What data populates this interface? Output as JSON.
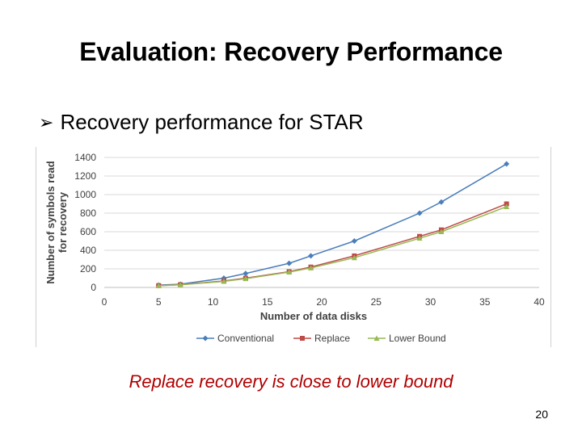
{
  "slide": {
    "title": "Evaluation: Recovery Performance",
    "bullet": "Recovery performance for STAR",
    "caption": "Replace recovery is close to lower bound",
    "page_number": "20"
  },
  "chart_data": {
    "type": "line",
    "xlabel": "Number of data disks",
    "ylabel": [
      "Number of symbols read",
      "for recovery"
    ],
    "xlim": [
      0,
      40
    ],
    "ylim": [
      0,
      1400
    ],
    "xticks": [
      0,
      5,
      10,
      15,
      20,
      25,
      30,
      35,
      40
    ],
    "yticks": [
      0,
      200,
      400,
      600,
      800,
      1000,
      1200,
      1400
    ],
    "grid": true,
    "legend_position": "bottom",
    "series": [
      {
        "name": "Conventional",
        "color": "#4a7ebb",
        "marker": "diamond",
        "x": [
          5,
          7,
          11,
          13,
          17,
          19,
          23,
          29,
          31,
          37
        ],
        "y": [
          25,
          35,
          100,
          150,
          260,
          340,
          500,
          800,
          920,
          1330
        ]
      },
      {
        "name": "Replace",
        "color": "#be4b48",
        "marker": "square",
        "x": [
          5,
          7,
          11,
          13,
          17,
          19,
          23,
          29,
          31,
          37
        ],
        "y": [
          20,
          30,
          70,
          100,
          170,
          220,
          340,
          550,
          620,
          900
        ]
      },
      {
        "name": "Lower Bound",
        "color": "#98b954",
        "marker": "triangle",
        "x": [
          5,
          7,
          11,
          13,
          17,
          19,
          23,
          29,
          31,
          37
        ],
        "y": [
          18,
          28,
          65,
          95,
          165,
          210,
          320,
          530,
          600,
          870
        ]
      }
    ]
  }
}
